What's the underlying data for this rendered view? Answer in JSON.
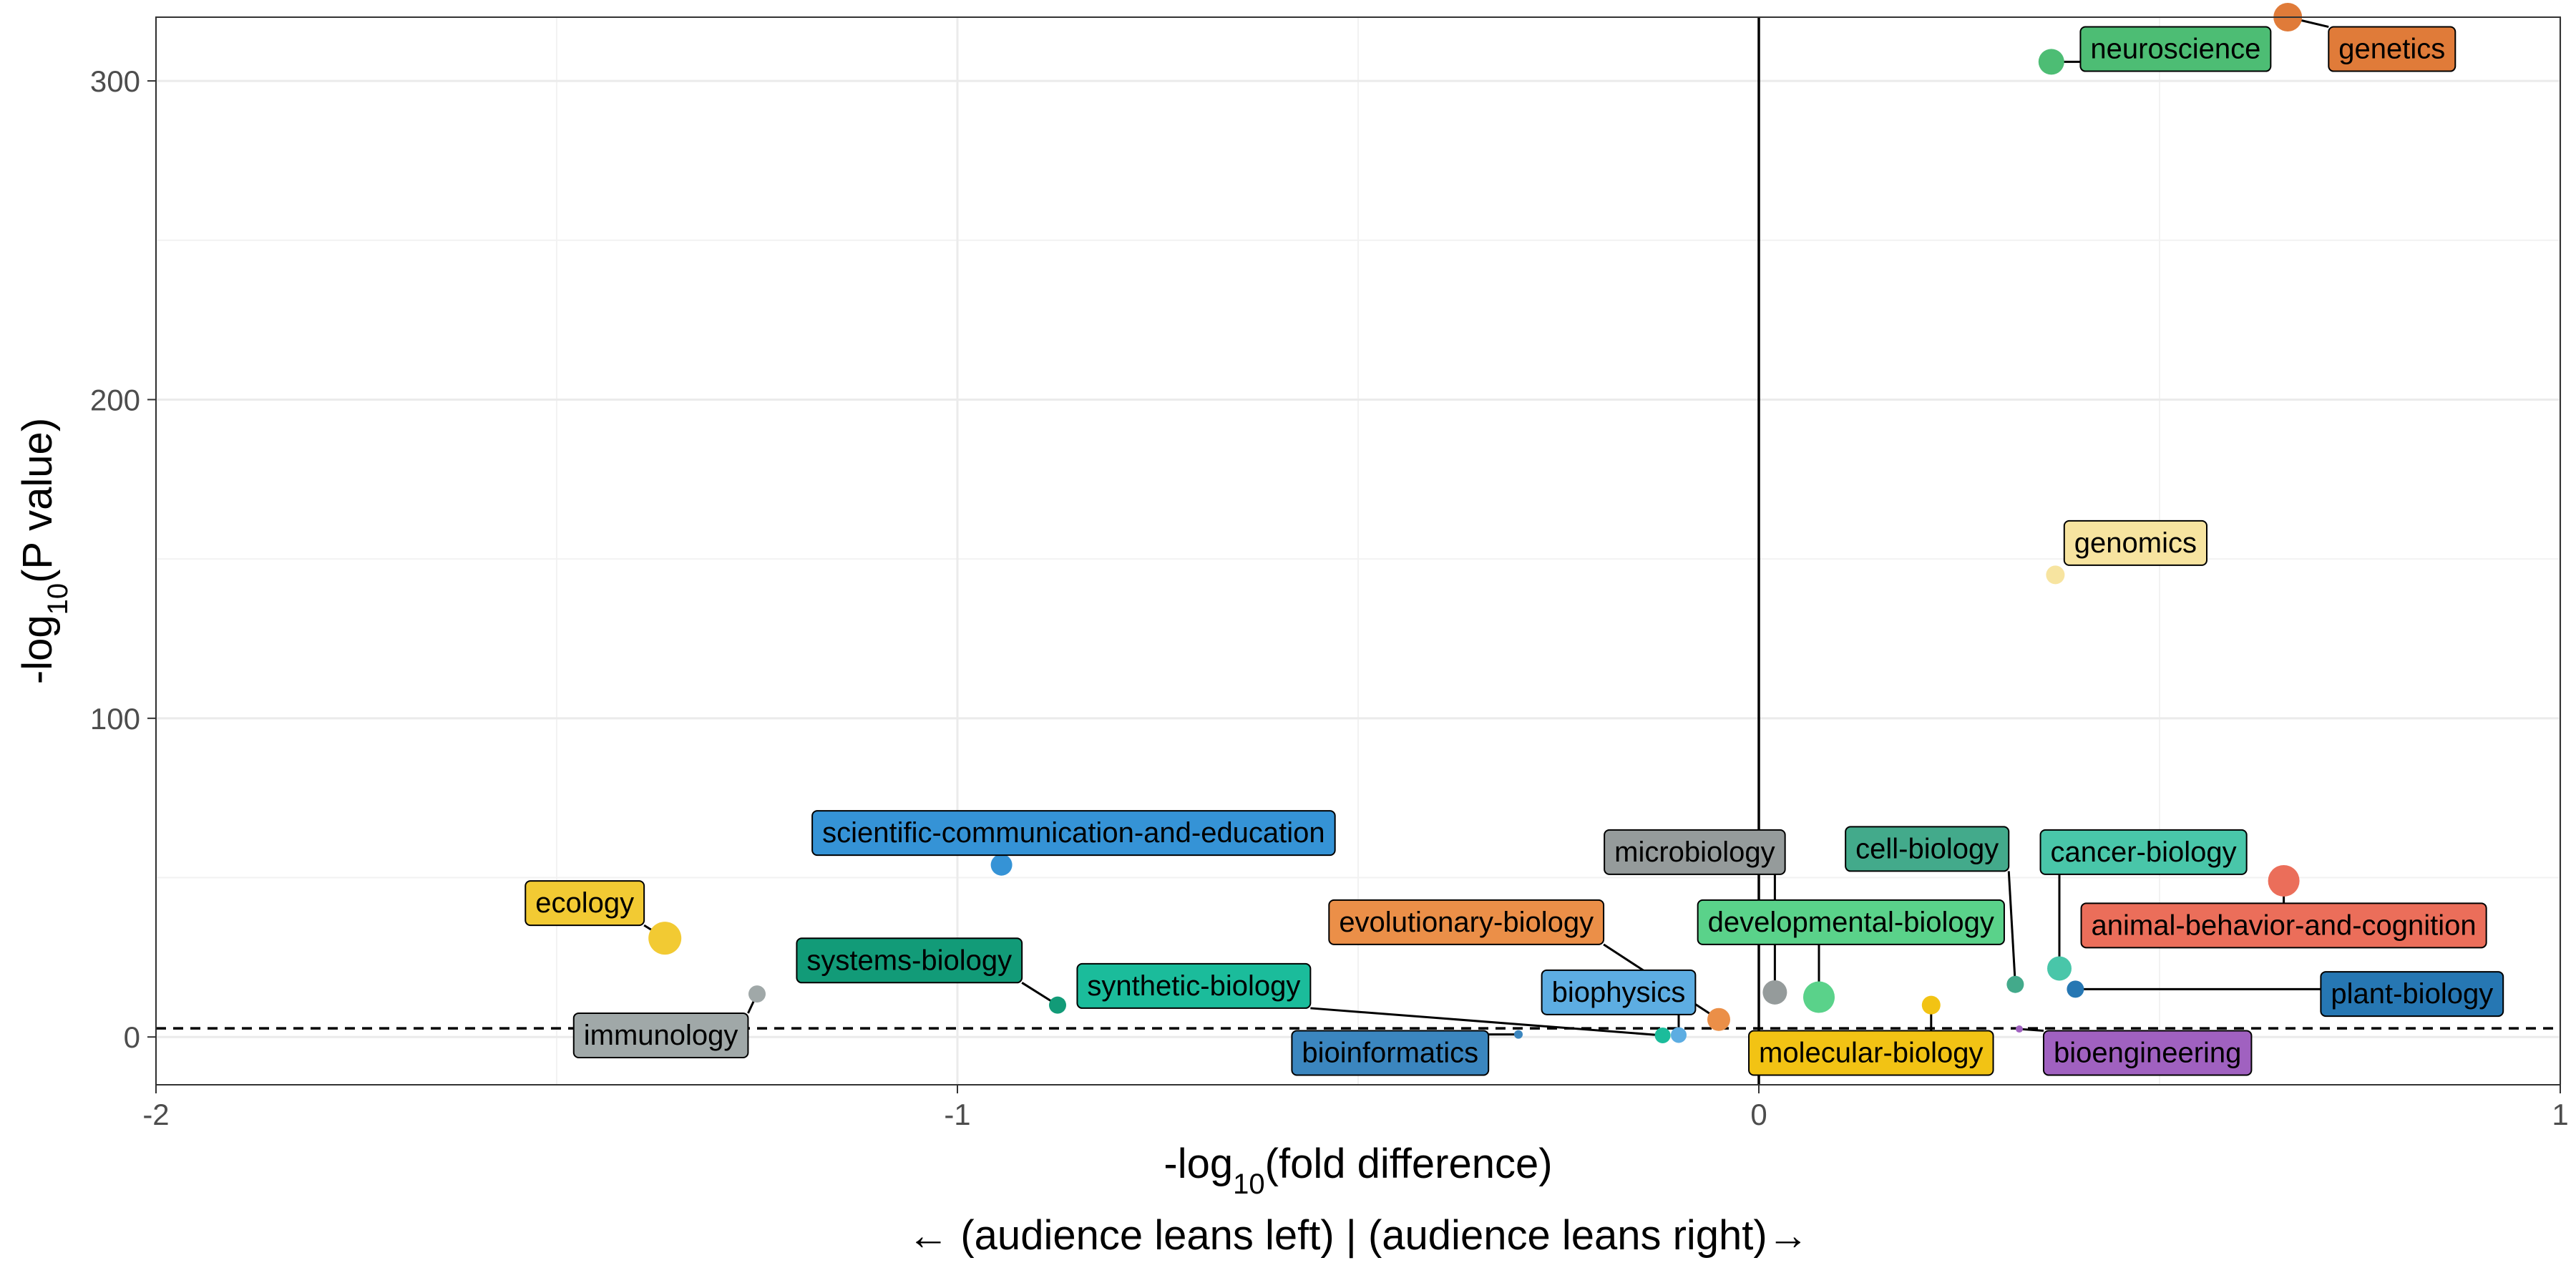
{
  "chart_data": {
    "type": "scatter",
    "title": "",
    "xlabel": "-log10(fold difference)",
    "xlabel_parts": {
      "base": "-log",
      "sub": "10",
      "rest": "(fold difference)"
    },
    "xlabel_secondary": "← (audience leans left) | (audience leans right)→",
    "ylabel": "-log10(P value)",
    "ylabel_parts": {
      "base": "-log",
      "sub": "10",
      "rest": "(P value)"
    },
    "xlim": [
      -2,
      1
    ],
    "ylim": [
      -15,
      320
    ],
    "x_ticks": [
      -2,
      -1,
      0,
      1
    ],
    "x_tick_labels": [
      "-2",
      "-1",
      "0",
      "1"
    ],
    "y_ticks": [
      0,
      100,
      200,
      300
    ],
    "y_tick_labels": [
      "0",
      "100",
      "200",
      "300"
    ],
    "grid": true,
    "legend": "none",
    "reference_lines": {
      "vertical_x": 0,
      "horizontal_dashed_y": 2.7
    },
    "points": [
      {
        "label": "genetics",
        "x": 0.66,
        "y": 320,
        "size": 20,
        "color": "#e07b39",
        "label_x": 0.79,
        "label_y": 310,
        "text_color": "#000000"
      },
      {
        "label": "neuroscience",
        "x": 0.365,
        "y": 306,
        "size": 18,
        "color": "#4dbd74",
        "label_x": 0.52,
        "label_y": 310,
        "text_color": "#000000"
      },
      {
        "label": "genomics",
        "x": 0.37,
        "y": 145,
        "size": 13,
        "color": "#f7e4a0",
        "label_x": 0.47,
        "label_y": 155,
        "text_color": "#000000"
      },
      {
        "label": "scientific-communication-and-education",
        "x": -0.945,
        "y": 54,
        "size": 15,
        "color": "#3593d6",
        "label_x": -0.855,
        "label_y": 64,
        "text_color": "#000000"
      },
      {
        "label": "ecology",
        "x": -1.365,
        "y": 31,
        "size": 23,
        "color": "#f2ca33",
        "label_x": -1.465,
        "label_y": 42,
        "text_color": "#000000"
      },
      {
        "label": "immunology",
        "x": -1.25,
        "y": 13.5,
        "size": 12,
        "color": "#a0a8a8",
        "label_x": -1.37,
        "label_y": 0.5,
        "text_color": "#000000"
      },
      {
        "label": "systems-biology",
        "x": -0.875,
        "y": 10,
        "size": 12,
        "color": "#129b78",
        "label_x": -1.06,
        "label_y": 24,
        "text_color": "#000000"
      },
      {
        "label": "synthetic-biology",
        "x": -0.12,
        "y": 0.5,
        "size": 11,
        "color": "#1bbc9b",
        "label_x": -0.705,
        "label_y": 16,
        "text_color": "#000000"
      },
      {
        "label": "bioinformatics",
        "x": -0.3,
        "y": 0.8,
        "size": 6,
        "color": "#3b86bf",
        "label_x": -0.46,
        "label_y": -5,
        "text_color": "#000000"
      },
      {
        "label": "biophysics",
        "x": -0.1,
        "y": 0.6,
        "size": 11,
        "color": "#5dade2",
        "label_x": -0.175,
        "label_y": 14,
        "text_color": "#000000"
      },
      {
        "label": "evolutionary-biology",
        "x": -0.05,
        "y": 5.5,
        "size": 16,
        "color": "#eb8f48",
        "label_x": -0.365,
        "label_y": 36,
        "text_color": "#000000"
      },
      {
        "label": "microbiology",
        "x": 0.02,
        "y": 14,
        "size": 17,
        "color": "#959b9b",
        "label_x": -0.08,
        "label_y": 58,
        "text_color": "#000000"
      },
      {
        "label": "developmental-biology",
        "x": 0.075,
        "y": 12.5,
        "size": 22,
        "color": "#5ad28a",
        "label_x": 0.115,
        "label_y": 36,
        "text_color": "#000000"
      },
      {
        "label": "cell-biology",
        "x": 0.32,
        "y": 16.5,
        "size": 12,
        "color": "#43aa8b",
        "label_x": 0.21,
        "label_y": 59,
        "text_color": "#000000"
      },
      {
        "label": "molecular-biology",
        "x": 0.215,
        "y": 10,
        "size": 13,
        "color": "#f2c314",
        "label_x": 0.14,
        "label_y": -5,
        "text_color": "#000000"
      },
      {
        "label": "bioengineering",
        "x": 0.325,
        "y": 2.5,
        "size": 5,
        "color": "#a061c0",
        "label_x": 0.485,
        "label_y": -5,
        "text_color": "#000000"
      },
      {
        "label": "cancer-biology",
        "x": 0.375,
        "y": 21.5,
        "size": 17,
        "color": "#49c6a9",
        "label_x": 0.48,
        "label_y": 58,
        "text_color": "#000000"
      },
      {
        "label": "plant-biology",
        "x": 0.395,
        "y": 15,
        "size": 12,
        "color": "#2677b3",
        "label_x": 0.815,
        "label_y": 13.5,
        "text_color": "#000000"
      },
      {
        "label": "animal-behavior-and-cognition",
        "x": 0.655,
        "y": 49,
        "size": 22,
        "color": "#eb6e5a",
        "label_x": 0.655,
        "label_y": 35,
        "text_color": "#000000"
      }
    ]
  }
}
